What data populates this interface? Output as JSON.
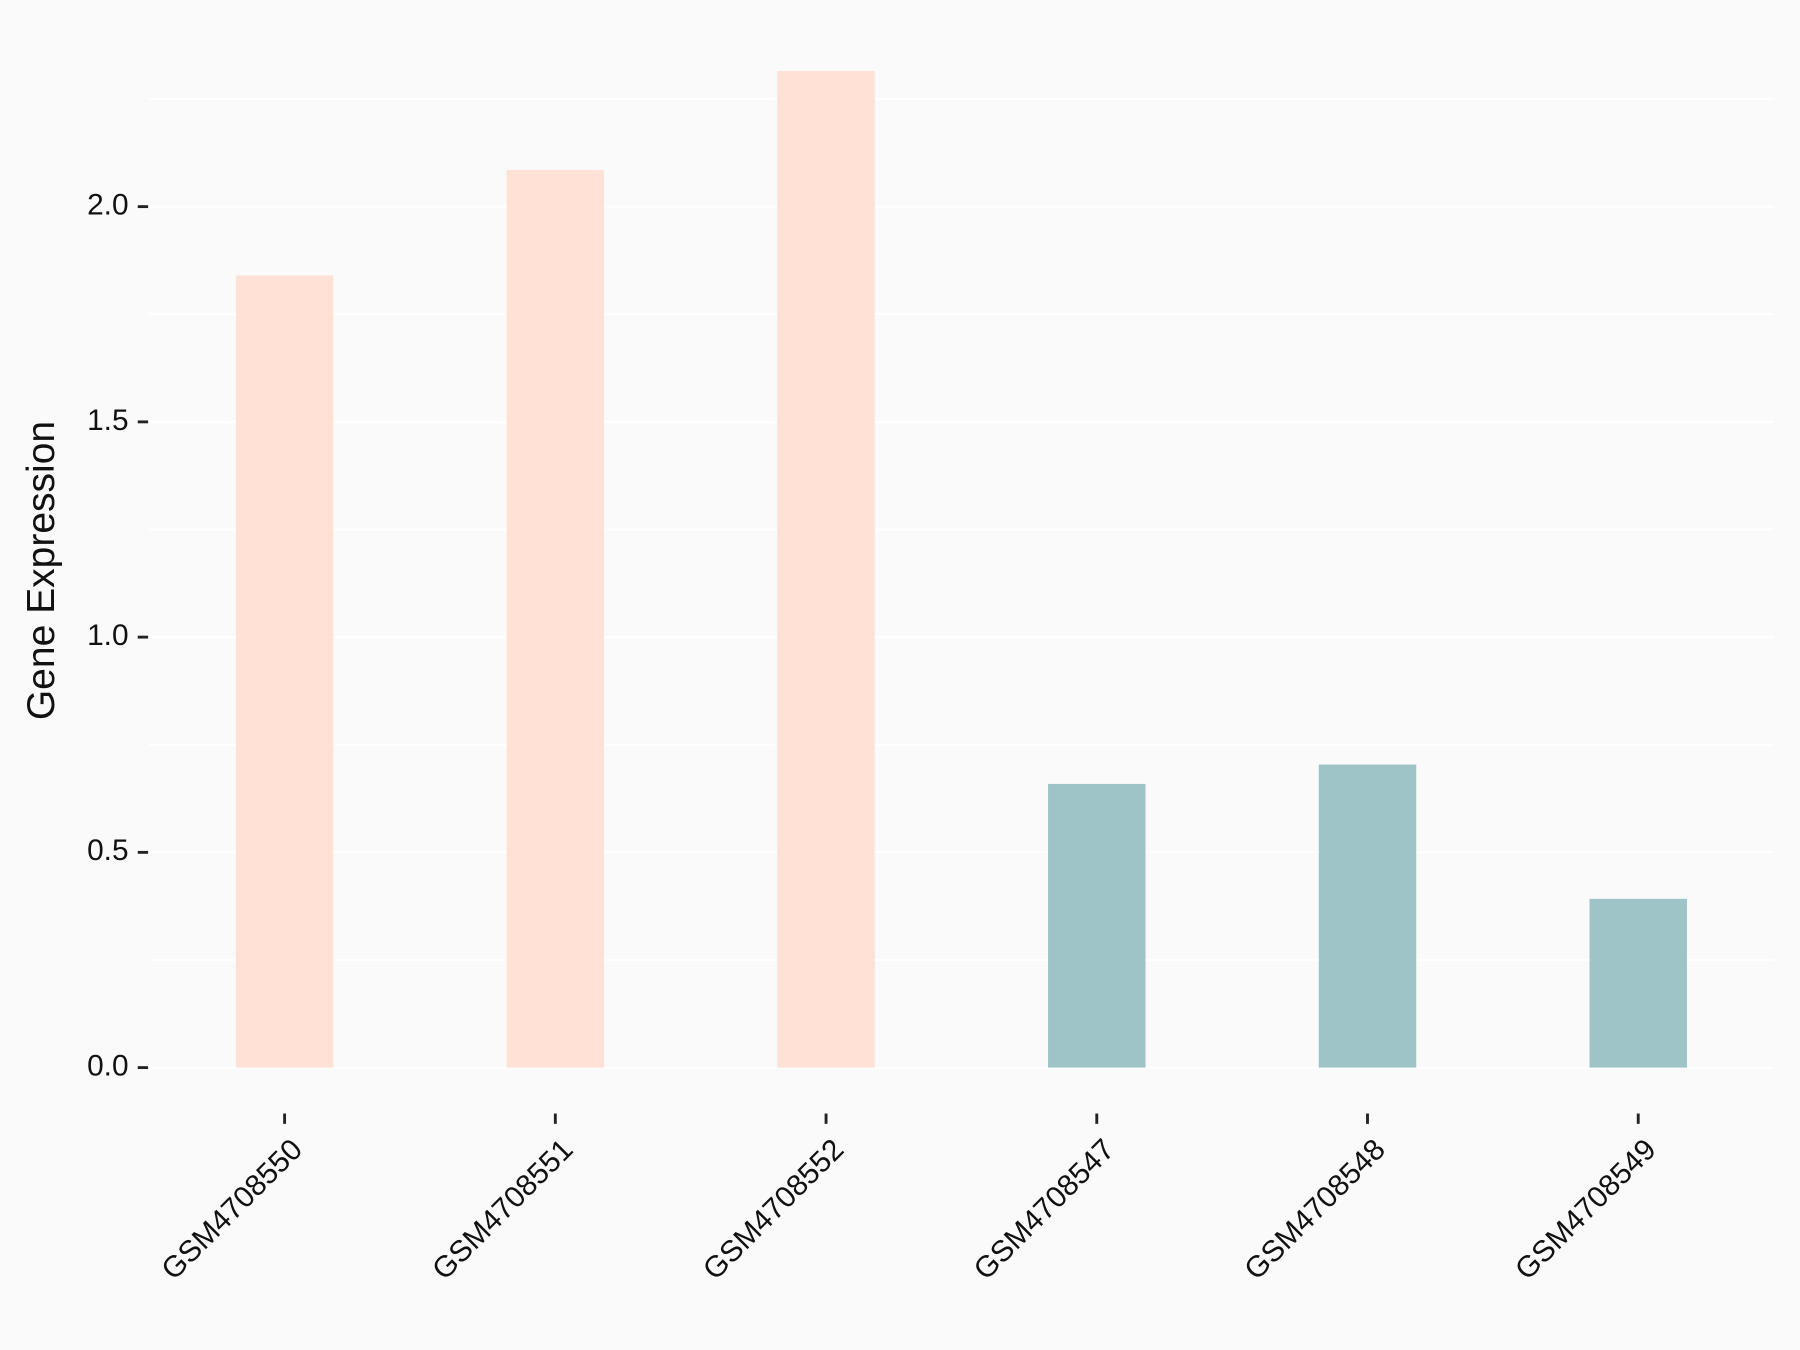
{
  "chart_data": {
    "type": "bar",
    "y_label": "Gene Expression",
    "categories": [
      "GSM4708550",
      "GSM4708551",
      "GSM4708552",
      "GSM4708547",
      "GSM4708548",
      "GSM4708549"
    ],
    "values": [
      1.84,
      2.085,
      2.315,
      0.659,
      0.704,
      0.392
    ],
    "colors": [
      "#ffe1d6",
      "#ffe1d6",
      "#ffe1d6",
      "#9ec4c8",
      "#9ec4c8",
      "#9ec4c8"
    ],
    "ylim": [
      -0.1,
      2.4
    ],
    "yticks": [
      {
        "value": 0,
        "label": "0.0"
      },
      {
        "value": 0.5,
        "label": "0.5"
      },
      {
        "value": 1,
        "label": "1.0"
      },
      {
        "value": 1.5,
        "label": "1.5"
      },
      {
        "value": 2,
        "label": "2.0"
      }
    ],
    "minor_yticks": [
      0.25,
      0.75,
      1.25,
      1.75,
      2.25
    ],
    "grid": true
  }
}
